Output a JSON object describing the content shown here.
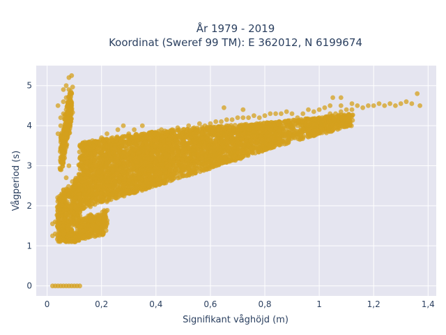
{
  "chart_data": {
    "type": "scatter",
    "title_line1": "År 1979 - 2019",
    "title_line2": "Koordinat (Sweref 99 TM): E 362012, N 6199674",
    "xlabel": "Signifikant våghöjd (m)",
    "ylabel": "Vågperiod (s)",
    "xlim": [
      -0.04,
      1.43
    ],
    "ylim": [
      -0.25,
      5.5
    ],
    "x_ticks": [
      0,
      0.2,
      0.4,
      0.6,
      0.8,
      1,
      1.2,
      1.4
    ],
    "x_tick_labels": [
      "0",
      "0,2",
      "0,4",
      "0,6",
      "0,8",
      "1",
      "1,2",
      "1,4"
    ],
    "y_ticks": [
      0,
      1,
      2,
      3,
      4,
      5
    ],
    "y_tick_labels": [
      "0",
      "1",
      "2",
      "3",
      "4",
      "5"
    ],
    "grid": true,
    "colors": {
      "marker": "#d4a01e",
      "plot_background": "#e5e5f0",
      "grid": "#ffffff",
      "text": "#2a3f5f"
    },
    "series": [
      {
        "points": [
          [
            0.02,
            0
          ],
          [
            0.03,
            0
          ],
          [
            0.04,
            0
          ],
          [
            0.05,
            0
          ],
          [
            0.06,
            0
          ],
          [
            0.07,
            0
          ],
          [
            0.08,
            0
          ],
          [
            0.09,
            0
          ],
          [
            0.1,
            0
          ],
          [
            0.11,
            0
          ],
          [
            0.12,
            0
          ],
          [
            0.02,
            1.25
          ],
          [
            0.02,
            1.55
          ],
          [
            0.03,
            1.3
          ],
          [
            0.03,
            1.6
          ],
          [
            0.04,
            1.45
          ],
          [
            0.04,
            1.7
          ],
          [
            0.05,
            1.2
          ],
          [
            0.05,
            1.9
          ],
          [
            0.05,
            2.2
          ],
          [
            0.06,
            1.15
          ],
          [
            0.06,
            1.5
          ],
          [
            0.06,
            2.4
          ],
          [
            0.07,
            1.1
          ],
          [
            0.07,
            1.8
          ],
          [
            0.07,
            2.7
          ],
          [
            0.08,
            1.1
          ],
          [
            0.08,
            2.0
          ],
          [
            0.08,
            3.0
          ],
          [
            0.09,
            1.1
          ],
          [
            0.09,
            1.4
          ],
          [
            0.09,
            2.3
          ],
          [
            0.1,
            1.1
          ],
          [
            0.1,
            1.6
          ],
          [
            0.1,
            2.5
          ],
          [
            0.11,
            1.15
          ],
          [
            0.11,
            1.9
          ],
          [
            0.12,
            1.2
          ],
          [
            0.12,
            2.1
          ],
          [
            0.13,
            1.2
          ],
          [
            0.13,
            2.6
          ],
          [
            0.14,
            1.25
          ],
          [
            0.14,
            2.4
          ],
          [
            0.15,
            1.3
          ],
          [
            0.15,
            1.5
          ],
          [
            0.16,
            1.4
          ],
          [
            0.17,
            1.5
          ],
          [
            0.18,
            1.5
          ],
          [
            0.19,
            1.55
          ],
          [
            0.2,
            1.5
          ],
          [
            0.21,
            1.6
          ],
          [
            0.22,
            1.55
          ],
          [
            0.05,
            3.1
          ],
          [
            0.05,
            3.4
          ],
          [
            0.05,
            3.7
          ],
          [
            0.05,
            4.0
          ],
          [
            0.05,
            4.2
          ],
          [
            0.06,
            3.2
          ],
          [
            0.06,
            3.6
          ],
          [
            0.06,
            3.9
          ],
          [
            0.06,
            4.3
          ],
          [
            0.06,
            4.6
          ],
          [
            0.06,
            4.9
          ],
          [
            0.07,
            3.5
          ],
          [
            0.07,
            3.8
          ],
          [
            0.07,
            4.1
          ],
          [
            0.07,
            4.4
          ],
          [
            0.07,
            4.7
          ],
          [
            0.07,
            5.0
          ],
          [
            0.08,
            4.0
          ],
          [
            0.08,
            4.3
          ],
          [
            0.08,
            4.6
          ],
          [
            0.08,
            4.9
          ],
          [
            0.08,
            5.2
          ],
          [
            0.09,
            4.5
          ],
          [
            0.09,
            4.8
          ],
          [
            0.09,
            5.25
          ],
          [
            0.04,
            4.5
          ],
          [
            0.04,
            3.8
          ],
          [
            0.12,
            2.2
          ],
          [
            0.13,
            2.4
          ],
          [
            0.14,
            2.6
          ],
          [
            0.15,
            2.8
          ],
          [
            0.15,
            3.1
          ],
          [
            0.16,
            2.5
          ],
          [
            0.16,
            3.3
          ],
          [
            0.17,
            2.7
          ],
          [
            0.17,
            3.5
          ],
          [
            0.18,
            2.3
          ],
          [
            0.18,
            3.0
          ],
          [
            0.18,
            3.6
          ],
          [
            0.19,
            2.6
          ],
          [
            0.19,
            3.2
          ],
          [
            0.2,
            2.2
          ],
          [
            0.2,
            2.9
          ],
          [
            0.2,
            3.7
          ],
          [
            0.21,
            2.4
          ],
          [
            0.21,
            3.4
          ],
          [
            0.22,
            2.1
          ],
          [
            0.22,
            2.8
          ],
          [
            0.22,
            3.8
          ],
          [
            0.23,
            2.5
          ],
          [
            0.23,
            3.3
          ],
          [
            0.24,
            2.3
          ],
          [
            0.24,
            3.0
          ],
          [
            0.24,
            3.7
          ],
          [
            0.25,
            2.6
          ],
          [
            0.25,
            3.5
          ],
          [
            0.26,
            2.4
          ],
          [
            0.26,
            3.1
          ],
          [
            0.26,
            3.9
          ],
          [
            0.27,
            2.7
          ],
          [
            0.27,
            3.6
          ],
          [
            0.28,
            2.5
          ],
          [
            0.28,
            3.3
          ],
          [
            0.28,
            4.0
          ],
          [
            0.3,
            2.6
          ],
          [
            0.3,
            3.2
          ],
          [
            0.3,
            3.8
          ],
          [
            0.32,
            2.7
          ],
          [
            0.32,
            3.4
          ],
          [
            0.32,
            3.9
          ],
          [
            0.34,
            2.8
          ],
          [
            0.34,
            3.5
          ],
          [
            0.35,
            4.0
          ],
          [
            0.36,
            2.9
          ],
          [
            0.36,
            3.6
          ],
          [
            0.38,
            3.0
          ],
          [
            0.38,
            3.7
          ],
          [
            0.4,
            3.1
          ],
          [
            0.4,
            3.8
          ],
          [
            0.42,
            3.2
          ],
          [
            0.42,
            3.9
          ],
          [
            0.44,
            3.25
          ],
          [
            0.44,
            3.85
          ],
          [
            0.46,
            3.3
          ],
          [
            0.46,
            3.9
          ],
          [
            0.48,
            3.35
          ],
          [
            0.48,
            3.95
          ],
          [
            0.5,
            3.4
          ],
          [
            0.5,
            3.9
          ],
          [
            0.52,
            3.45
          ],
          [
            0.52,
            4.0
          ],
          [
            0.54,
            3.5
          ],
          [
            0.54,
            3.95
          ],
          [
            0.56,
            3.5
          ],
          [
            0.56,
            4.05
          ],
          [
            0.58,
            3.55
          ],
          [
            0.58,
            4.0
          ],
          [
            0.6,
            3.6
          ],
          [
            0.6,
            4.05
          ],
          [
            0.62,
            3.6
          ],
          [
            0.62,
            4.1
          ],
          [
            0.64,
            3.65
          ],
          [
            0.64,
            4.1
          ],
          [
            0.66,
            3.7
          ],
          [
            0.66,
            4.15
          ],
          [
            0.68,
            3.7
          ],
          [
            0.68,
            4.15
          ],
          [
            0.7,
            3.75
          ],
          [
            0.7,
            4.2
          ],
          [
            0.72,
            3.8
          ],
          [
            0.72,
            4.2
          ],
          [
            0.74,
            3.8
          ],
          [
            0.74,
            4.2
          ],
          [
            0.76,
            3.85
          ],
          [
            0.76,
            4.25
          ],
          [
            0.78,
            3.85
          ],
          [
            0.78,
            4.2
          ],
          [
            0.8,
            3.9
          ],
          [
            0.8,
            4.25
          ],
          [
            0.82,
            3.9
          ],
          [
            0.82,
            4.3
          ],
          [
            0.84,
            3.95
          ],
          [
            0.84,
            4.3
          ],
          [
            0.86,
            4.0
          ],
          [
            0.86,
            4.3
          ],
          [
            0.88,
            4.0
          ],
          [
            0.88,
            4.35
          ],
          [
            0.9,
            4.05
          ],
          [
            0.9,
            4.3
          ],
          [
            0.92,
            4.0
          ],
          [
            0.92,
            4.2
          ],
          [
            0.94,
            4.1
          ],
          [
            0.94,
            4.3
          ],
          [
            0.96,
            4.1
          ],
          [
            0.96,
            4.4
          ],
          [
            0.98,
            4.15
          ],
          [
            0.98,
            4.35
          ],
          [
            1.0,
            4.2
          ],
          [
            1.0,
            4.4
          ],
          [
            1.02,
            4.2
          ],
          [
            1.02,
            4.45
          ],
          [
            1.04,
            4.3
          ],
          [
            1.04,
            4.5
          ],
          [
            1.06,
            4.3
          ],
          [
            1.08,
            4.35
          ],
          [
            1.08,
            4.5
          ],
          [
            1.1,
            4.4
          ],
          [
            1.12,
            4.4
          ],
          [
            1.12,
            4.55
          ],
          [
            1.14,
            4.5
          ],
          [
            1.16,
            4.45
          ],
          [
            1.18,
            4.5
          ],
          [
            1.2,
            4.5
          ],
          [
            1.22,
            4.55
          ],
          [
            1.24,
            4.5
          ],
          [
            1.26,
            4.55
          ],
          [
            1.28,
            4.5
          ],
          [
            1.3,
            4.55
          ],
          [
            1.32,
            4.6
          ],
          [
            1.34,
            4.55
          ],
          [
            1.36,
            4.8
          ],
          [
            1.37,
            4.5
          ],
          [
            1.05,
            4.7
          ],
          [
            1.08,
            4.7
          ],
          [
            0.65,
            4.45
          ],
          [
            0.72,
            4.4
          ]
        ],
        "clusters": [
          {
            "x": [
              0.12,
              0.45
            ],
            "y_low_at": [
              1.9,
              2.6
            ],
            "y_high_at": [
              3.6,
              3.9
            ],
            "n": 2200
          },
          {
            "x": [
              0.45,
              0.85
            ],
            "y_low_at": [
              2.6,
              3.5
            ],
            "y_high_at": [
              3.9,
              4.1
            ],
            "n": 1600
          },
          {
            "x": [
              0.85,
              1.12
            ],
            "y_low_at": [
              3.5,
              4.0
            ],
            "y_high_at": [
              4.1,
              4.3
            ],
            "n": 500
          },
          {
            "x": [
              0.04,
              0.12
            ],
            "y_low_at": [
              1.1,
              1.1
            ],
            "y_high_at": [
              2.2,
              2.8
            ],
            "n": 500
          },
          {
            "x": [
              0.12,
              0.22
            ],
            "y_low_at": [
              1.15,
              1.3
            ],
            "y_high_at": [
              1.7,
              1.9
            ],
            "n": 300
          },
          {
            "x": [
              0.05,
              0.09
            ],
            "y_low_at": [
              2.8,
              4.2
            ],
            "y_high_at": [
              3.6,
              5.0
            ],
            "n": 250
          }
        ]
      }
    ]
  }
}
